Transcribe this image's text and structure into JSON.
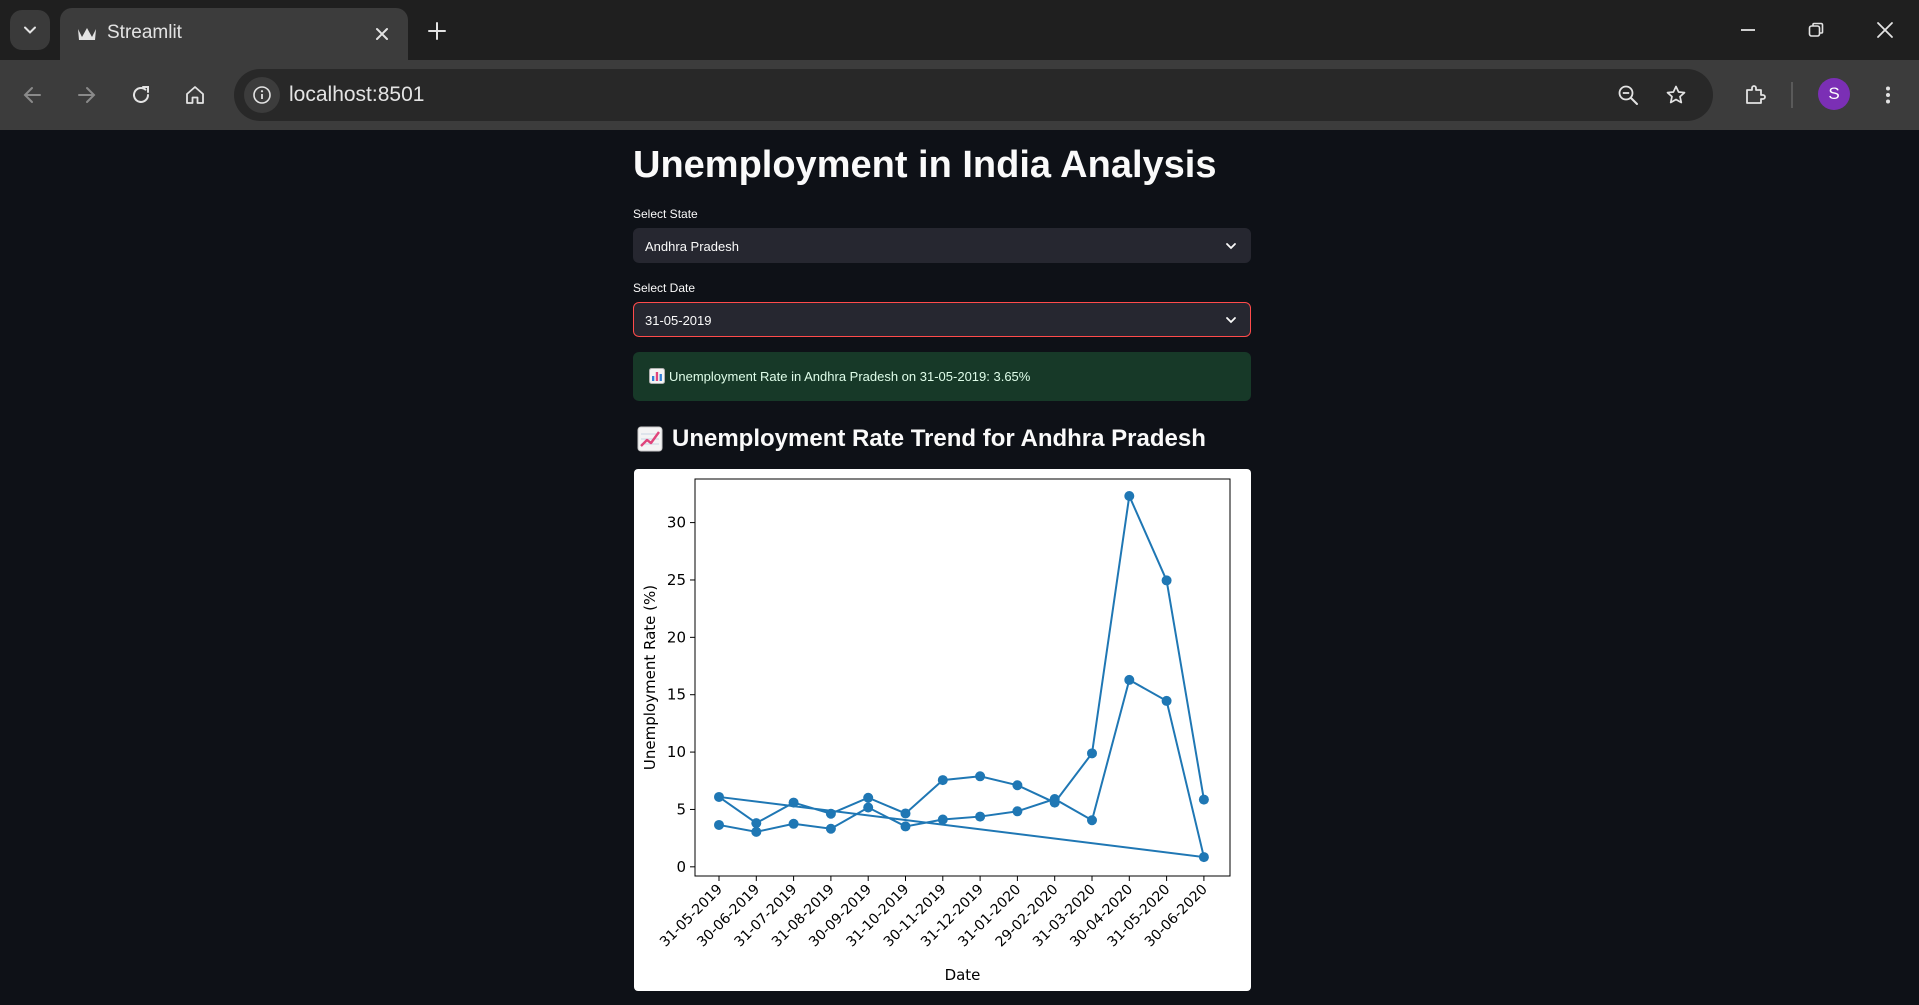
{
  "browser": {
    "tab_title": "Streamlit",
    "url": "localhost:8501",
    "profile_initial": "S"
  },
  "app": {
    "title": "Unemployment in India Analysis",
    "state_select": {
      "label": "Select State",
      "value": "Andhra Pradesh"
    },
    "date_select": {
      "label": "Select Date",
      "value": "31-05-2019"
    },
    "success_message": "Unemployment Rate in Andhra Pradesh on 31-05-2019: 3.65%",
    "subheader": "Unemployment Rate Trend for Andhra Pradesh",
    "accent_color": "#ff4b4b",
    "success_bg": "#173928"
  },
  "chart_data": {
    "type": "line",
    "xlabel": "Date",
    "ylabel": "Unemployment Rate (%)",
    "categories": [
      "31-05-2019",
      "30-06-2019",
      "31-07-2019",
      "31-08-2019",
      "30-09-2019",
      "31-10-2019",
      "30-11-2019",
      "31-12-2019",
      "31-01-2020",
      "29-02-2020",
      "31-03-2020",
      "30-04-2020",
      "31-05-2020",
      "30-06-2020"
    ],
    "yticks": [
      0,
      5,
      10,
      15,
      20,
      25,
      30
    ],
    "ylim": [
      -0.8,
      33.8
    ],
    "series": [
      {
        "values": [
          3.65,
          3.05,
          3.75,
          3.32,
          5.17,
          3.52,
          4.12,
          4.38,
          4.84,
          5.91,
          4.06,
          16.29,
          14.46,
          0.85
        ]
      },
      {
        "values": [
          6.09,
          3.81,
          5.6,
          4.63,
          6.02,
          4.65,
          7.56,
          7.89,
          7.11,
          5.6,
          9.89,
          32.32,
          24.96,
          5.86
        ]
      }
    ],
    "color": "#1f77b4",
    "grid": false,
    "legend": "none"
  }
}
